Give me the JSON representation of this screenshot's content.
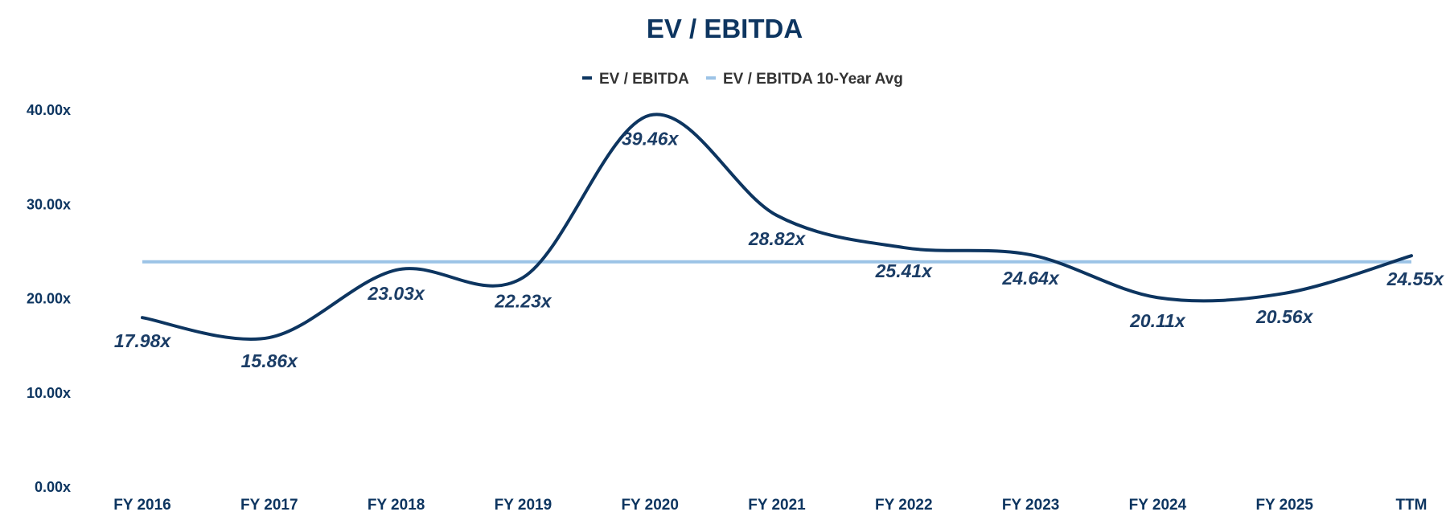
{
  "chart_data": {
    "type": "line",
    "title": "EV / EBITDA",
    "categories": [
      "FY 2016",
      "FY 2017",
      "FY 2018",
      "FY 2019",
      "FY 2020",
      "FY 2021",
      "FY 2022",
      "FY 2023",
      "FY 2024",
      "FY 2025",
      "TTM"
    ],
    "series": [
      {
        "name": "EV / EBITDA",
        "values": [
          17.98,
          15.86,
          23.03,
          22.23,
          39.46,
          28.82,
          25.41,
          24.64,
          20.11,
          20.56,
          24.55
        ],
        "labels": [
          "17.98x",
          "15.86x",
          "23.03x",
          "22.23x",
          "39.46x",
          "28.82x",
          "25.41x",
          "24.64x",
          "20.11x",
          "20.56x",
          "24.55x"
        ],
        "color": "#0d3560"
      },
      {
        "name": "EV / EBITDA 10-Year Avg",
        "values": [
          23.9,
          23.9,
          23.9,
          23.9,
          23.9,
          23.9,
          23.9,
          23.9,
          23.9,
          23.9,
          23.9
        ],
        "color": "#9cc3e6"
      }
    ],
    "yticks": [
      "0.00x",
      "10.00x",
      "20.00x",
      "30.00x",
      "40.00x"
    ],
    "ylim": [
      0,
      40
    ],
    "grid": false,
    "legend_position": "top-center",
    "smooth": true
  }
}
